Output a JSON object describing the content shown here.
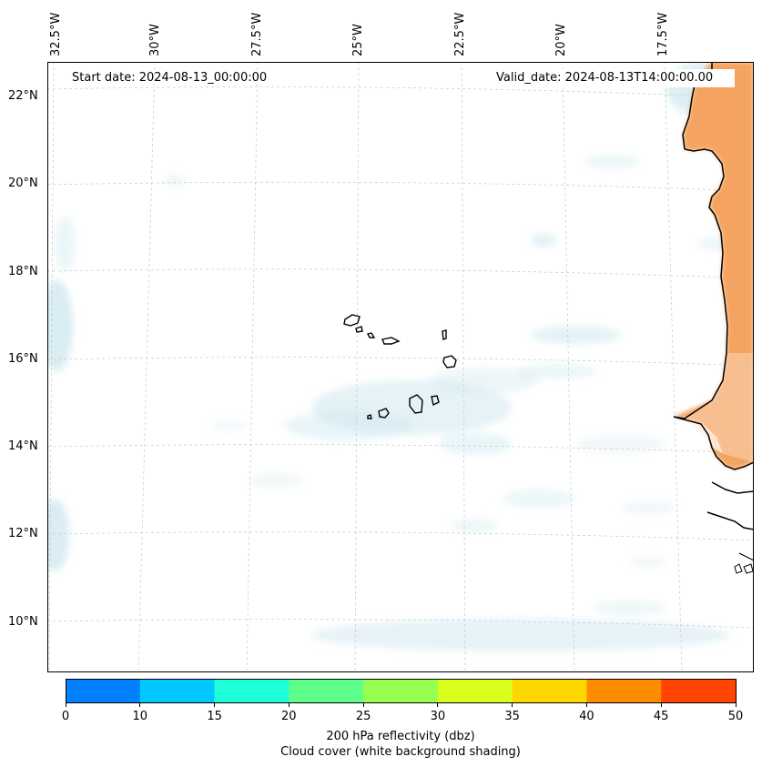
{
  "map": {
    "start_label": "Start date: 2024-08-13_00:00:00",
    "valid_label": "Valid_date: 2024-08-13T14:00:00.00",
    "lat_labels": [
      "22°N",
      "20°N",
      "18°N",
      "16°N",
      "14°N",
      "12°N",
      "10°N"
    ],
    "lon_labels": [
      "32.5°W",
      "30°W",
      "27.5°W",
      "25°W",
      "22.5°W",
      "20°W",
      "17.5°W"
    ],
    "land_color": "#f4a460",
    "cloud_color": "#cfe8ef"
  },
  "colorbar": {
    "ticks": [
      "0",
      "10",
      "15",
      "20",
      "25",
      "30",
      "35",
      "40",
      "45",
      "50"
    ],
    "colors": [
      "#0080ff",
      "#00c8ff",
      "#1effd8",
      "#5cff8a",
      "#96ff50",
      "#d8ff1e",
      "#ffd700",
      "#ff8c00",
      "#ff4500"
    ],
    "label": "200 hPa reflectivity (dbz)",
    "sublabel": "Cloud cover (white background shading)"
  }
}
